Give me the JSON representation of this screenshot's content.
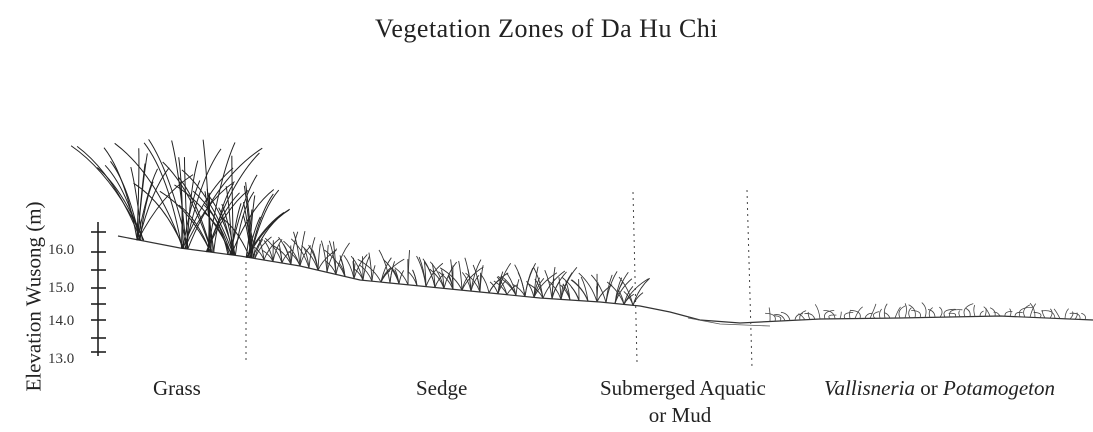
{
  "title": "Vegetation Zones of Da Hu Chi",
  "y_axis": {
    "label": "Elevation Wusong (m)",
    "ticks": [
      "16.0",
      "15.0",
      "14.0",
      "13.0"
    ]
  },
  "zones": {
    "grass": "Grass",
    "sedge": "Sedge",
    "submerged_line1": "Submerged Aquatic",
    "submerged_line2": "or Mud",
    "vallisneria": "Vallisneria",
    "connector": "or",
    "potamogeton": "Potamogeton"
  },
  "colors": {
    "ink": "#222222",
    "background": "#ffffff"
  }
}
